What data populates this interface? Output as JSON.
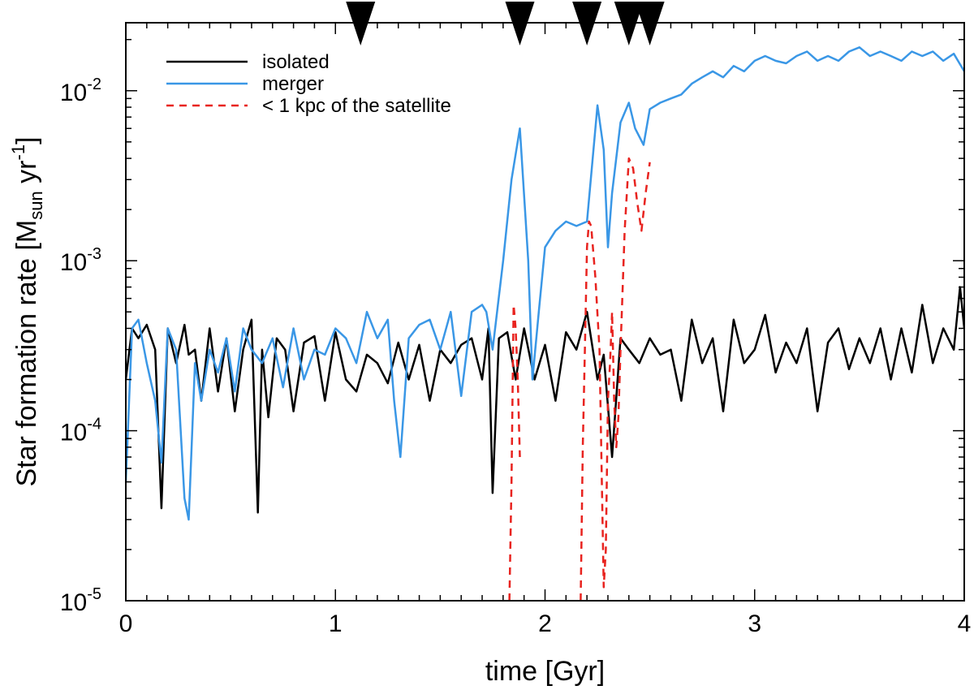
{
  "chart_data": {
    "type": "line",
    "xlabel": "time [Gyr]",
    "ylabel_parts": {
      "main": "Star formation rate [M",
      "sub": "sun",
      "mid": " yr",
      "sup": "-1",
      "end": "]"
    },
    "xlim": [
      0,
      4
    ],
    "ylim_log10": [
      -5,
      -1.6
    ],
    "yscale": "log",
    "x_ticks": [
      {
        "value": 0,
        "label": "0"
      },
      {
        "value": 1,
        "label": "1"
      },
      {
        "value": 2,
        "label": "2"
      },
      {
        "value": 3,
        "label": "3"
      },
      {
        "value": 4,
        "label": "4"
      }
    ],
    "y_ticks": [
      {
        "exp": -5,
        "base": "10",
        "sup": "-5"
      },
      {
        "exp": -4,
        "base": "10",
        "sup": "-4"
      },
      {
        "exp": -3,
        "base": "10",
        "sup": "-3"
      },
      {
        "exp": -2,
        "base": "10",
        "sup": "-2"
      }
    ],
    "markers": [
      1.12,
      1.88,
      2.2,
      2.4,
      2.5
    ],
    "legend_position": "top-left",
    "series": [
      {
        "name": "isolated",
        "color": "#000000",
        "dash": "solid",
        "x": [
          0.0,
          0.03,
          0.06,
          0.1,
          0.14,
          0.17,
          0.2,
          0.24,
          0.28,
          0.3,
          0.33,
          0.36,
          0.4,
          0.44,
          0.48,
          0.52,
          0.56,
          0.6,
          0.63,
          0.65,
          0.68,
          0.72,
          0.76,
          0.8,
          0.85,
          0.9,
          0.95,
          1.0,
          1.05,
          1.1,
          1.15,
          1.2,
          1.25,
          1.3,
          1.35,
          1.4,
          1.45,
          1.5,
          1.55,
          1.6,
          1.65,
          1.7,
          1.73,
          1.75,
          1.78,
          1.82,
          1.86,
          1.9,
          1.95,
          2.0,
          2.05,
          2.1,
          2.15,
          2.2,
          2.25,
          2.28,
          2.32,
          2.36,
          2.4,
          2.45,
          2.5,
          2.55,
          2.6,
          2.65,
          2.7,
          2.75,
          2.8,
          2.85,
          2.9,
          2.95,
          3.0,
          3.05,
          3.1,
          3.15,
          3.2,
          3.25,
          3.3,
          3.35,
          3.4,
          3.45,
          3.5,
          3.55,
          3.6,
          3.65,
          3.7,
          3.75,
          3.8,
          3.85,
          3.9,
          3.95,
          3.98,
          4.0
        ],
        "y": [
          0.0002,
          0.0004,
          0.00035,
          0.00042,
          0.0003,
          3.5e-05,
          0.0004,
          0.00025,
          0.00042,
          0.00028,
          0.0003,
          0.00015,
          0.0004,
          0.00017,
          0.00035,
          0.00013,
          0.0003,
          0.00045,
          3.3e-05,
          0.0003,
          0.00012,
          0.00035,
          0.0003,
          0.00013,
          0.00033,
          0.00036,
          0.00015,
          0.00038,
          0.0002,
          0.00017,
          0.00028,
          0.00025,
          0.00019,
          0.00033,
          0.0002,
          0.00032,
          0.00015,
          0.0003,
          0.00025,
          0.00032,
          0.00035,
          0.0002,
          0.0004,
          4.3e-05,
          0.00035,
          0.00038,
          0.0002,
          0.0004,
          0.0002,
          0.00032,
          0.00015,
          0.00038,
          0.0003,
          0.0005,
          0.0002,
          0.00028,
          7e-05,
          0.00035,
          0.0003,
          0.00025,
          0.00035,
          0.00028,
          0.0003,
          0.00015,
          0.00045,
          0.00025,
          0.00035,
          0.00013,
          0.00045,
          0.00025,
          0.0003,
          0.00048,
          0.00022,
          0.00033,
          0.00025,
          0.0004,
          0.00013,
          0.00033,
          0.0004,
          0.00023,
          0.00035,
          0.00025,
          0.0004,
          0.0002,
          0.0004,
          0.00022,
          0.00055,
          0.00025,
          0.0004,
          0.0003,
          0.0007,
          0.0004
        ]
      },
      {
        "name": "merger",
        "color": "#3a97e6",
        "dash": "solid",
        "x": [
          0.0,
          0.03,
          0.06,
          0.1,
          0.14,
          0.17,
          0.2,
          0.24,
          0.28,
          0.3,
          0.33,
          0.36,
          0.4,
          0.44,
          0.48,
          0.52,
          0.56,
          0.6,
          0.65,
          0.7,
          0.75,
          0.8,
          0.85,
          0.9,
          0.95,
          1.0,
          1.05,
          1.1,
          1.15,
          1.2,
          1.25,
          1.28,
          1.31,
          1.35,
          1.4,
          1.45,
          1.5,
          1.55,
          1.6,
          1.65,
          1.7,
          1.72,
          1.75,
          1.8,
          1.84,
          1.88,
          1.92,
          1.94,
          1.97,
          2.0,
          2.05,
          2.1,
          2.15,
          2.2,
          2.25,
          2.28,
          2.3,
          2.32,
          2.36,
          2.4,
          2.43,
          2.47,
          2.5,
          2.55,
          2.6,
          2.65,
          2.7,
          2.75,
          2.8,
          2.85,
          2.9,
          2.95,
          3.0,
          3.05,
          3.1,
          3.15,
          3.2,
          3.25,
          3.3,
          3.35,
          3.4,
          3.45,
          3.5,
          3.55,
          3.6,
          3.65,
          3.7,
          3.75,
          3.8,
          3.85,
          3.9,
          3.95,
          4.0
        ],
        "y": [
          5e-05,
          0.0004,
          0.00045,
          0.00025,
          0.00015,
          6.5e-05,
          0.0004,
          0.0003,
          4e-05,
          3e-05,
          0.00025,
          0.00015,
          0.0003,
          0.00022,
          0.00035,
          0.00017,
          0.0004,
          0.0003,
          0.00025,
          0.00035,
          0.00018,
          0.0004,
          0.0002,
          0.0003,
          0.00028,
          0.0004,
          0.00035,
          0.00025,
          0.0005,
          0.00035,
          0.00045,
          0.00015,
          7e-05,
          0.00035,
          0.00042,
          0.00045,
          0.0003,
          0.0005,
          0.00016,
          0.0005,
          0.00055,
          0.0005,
          0.0003,
          0.001,
          0.003,
          0.006,
          0.001,
          0.0002,
          0.0005,
          0.0012,
          0.0015,
          0.0017,
          0.0016,
          0.0017,
          0.0082,
          0.0045,
          0.0012,
          0.0025,
          0.0065,
          0.0085,
          0.006,
          0.0048,
          0.0078,
          0.0085,
          0.009,
          0.0095,
          0.011,
          0.012,
          0.013,
          0.012,
          0.014,
          0.013,
          0.015,
          0.016,
          0.015,
          0.0145,
          0.016,
          0.017,
          0.015,
          0.016,
          0.015,
          0.017,
          0.018,
          0.016,
          0.017,
          0.016,
          0.015,
          0.017,
          0.016,
          0.017,
          0.015,
          0.0165,
          0.013
        ]
      },
      {
        "name": "< 1 kpc of the satellite",
        "color": "#e8231f",
        "dash": "dashed",
        "segments": [
          {
            "x": [
              1.83,
              1.84,
              1.85,
              1.86,
              1.87,
              1.88
            ],
            "y": [
              1e-05,
              5e-05,
              0.00055,
              0.0004,
              0.0002,
              7e-05
            ]
          },
          {
            "x": [
              2.17,
              2.18,
              2.19,
              2.2,
              2.21,
              2.22,
              2.24,
              2.26,
              2.27,
              2.28,
              2.29,
              2.3,
              2.31,
              2.32,
              2.33,
              2.34,
              2.35,
              2.36,
              2.38,
              2.4,
              2.42,
              2.44,
              2.46,
              2.48,
              2.5
            ],
            "y": [
              1e-05,
              8e-05,
              0.0003,
              0.0012,
              0.0017,
              0.0016,
              0.0008,
              0.0003,
              6e-05,
              1.2e-05,
              2e-05,
              0.00015,
              0.00025,
              0.0005,
              0.00015,
              8e-05,
              0.00012,
              0.0003,
              0.0015,
              0.004,
              0.0035,
              0.0022,
              0.0015,
              0.0025,
              0.0038
            ]
          }
        ]
      }
    ]
  }
}
